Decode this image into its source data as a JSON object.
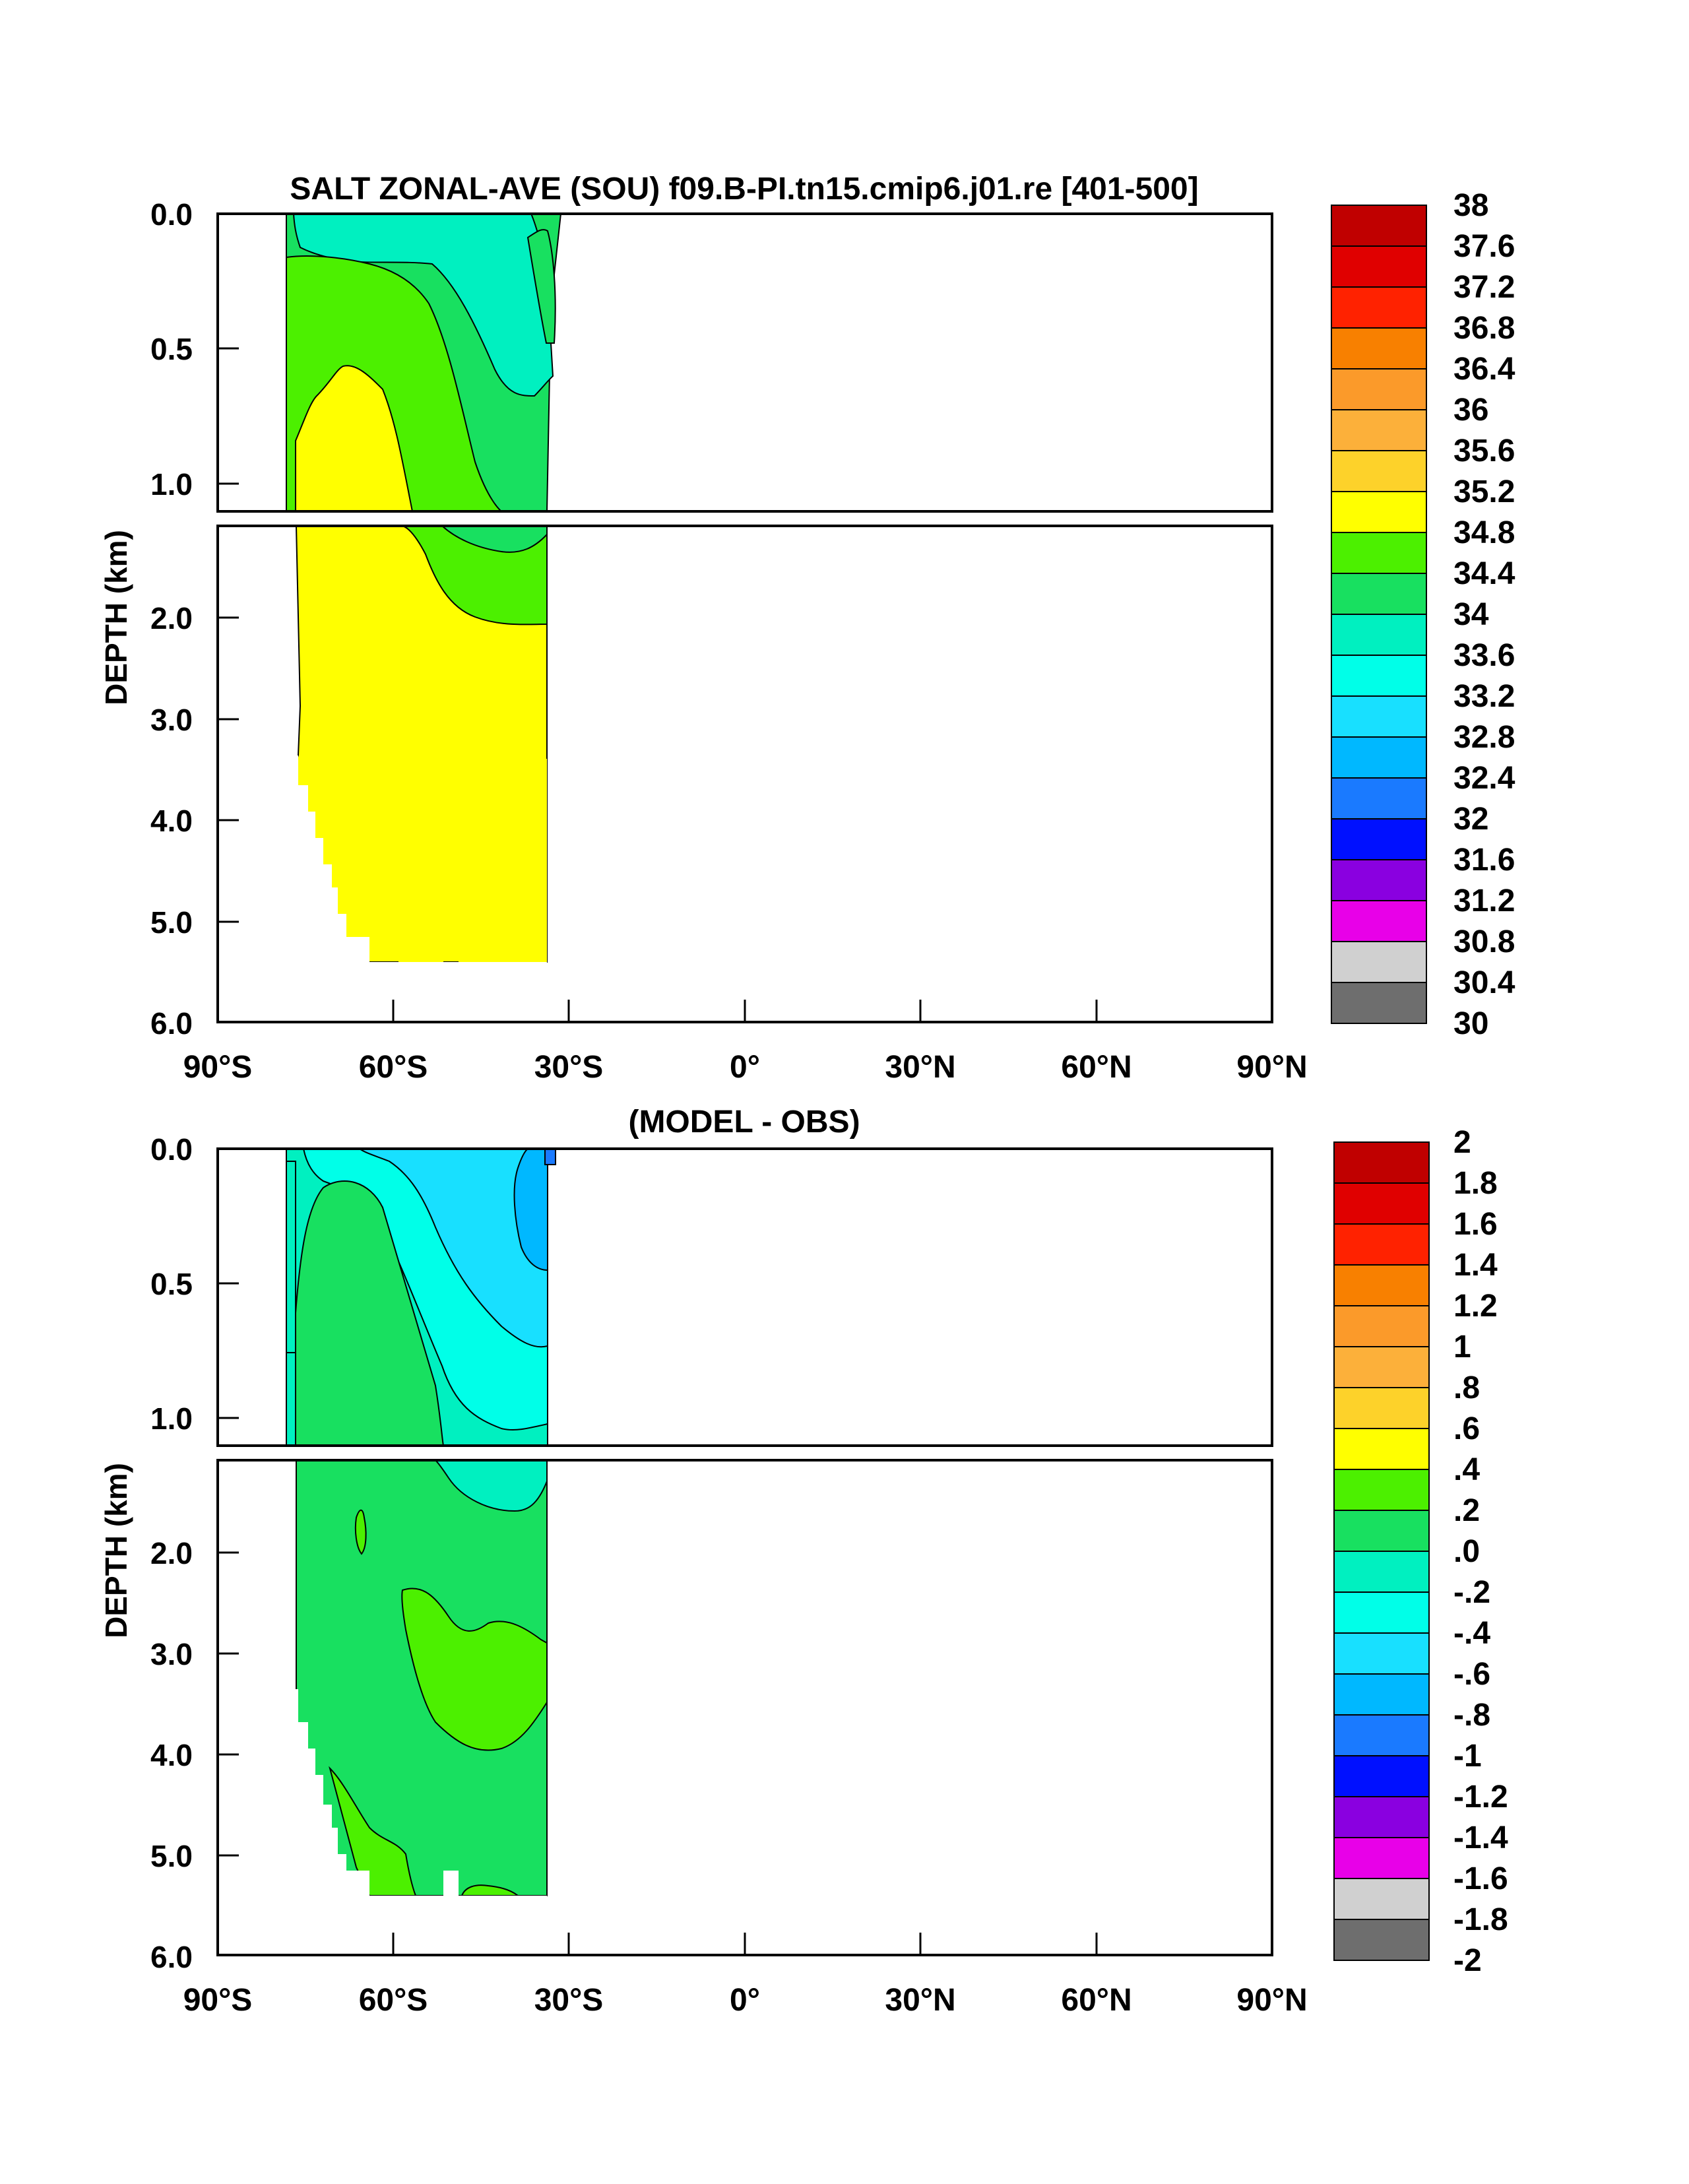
{
  "panels": [
    {
      "title": "SALT ZONAL-AVE (SOU) f09.B-PI.tn15.cmip6.j01.re [401-500]",
      "ylabel": "DEPTH (km)",
      "x_ticks": [
        "90°S",
        "60°S",
        "30°S",
        "0°",
        "30°N",
        "60°N",
        "90°N"
      ],
      "y_ticks_upper": [
        "0.0",
        "0.5",
        "1.0"
      ],
      "y_ticks_lower": [
        "2.0",
        "3.0",
        "4.0",
        "5.0",
        "6.0"
      ],
      "colorbar": {
        "labels": [
          "38",
          "37.6",
          "37.2",
          "36.8",
          "36.4",
          "36",
          "35.6",
          "35.2",
          "34.8",
          "34.4",
          "34",
          "33.6",
          "33.2",
          "32.8",
          "32.4",
          "32",
          "31.6",
          "31.2",
          "30.8",
          "30.4",
          "30"
        ],
        "colors_top_to_bottom": [
          "#c00000",
          "#e00000",
          "#ff2200",
          "#f88000",
          "#fb9a2a",
          "#fcb03a",
          "#fdd22a",
          "#ffff00",
          "#4cf000",
          "#18e060",
          "#00f0c0",
          "#00ffe8",
          "#18e0ff",
          "#00b8ff",
          "#1a7aff",
          "#0010ff",
          "#8a00e0",
          "#e800e8",
          "#d0d0d0",
          "#6e6e6e"
        ]
      }
    },
    {
      "title": "(MODEL - OBS)",
      "ylabel": "DEPTH (km)",
      "x_ticks": [
        "90°S",
        "60°S",
        "30°S",
        "0°",
        "30°N",
        "60°N",
        "90°N"
      ],
      "y_ticks_upper": [
        "0.0",
        "0.5",
        "1.0"
      ],
      "y_ticks_lower": [
        "2.0",
        "3.0",
        "4.0",
        "5.0",
        "6.0"
      ],
      "colorbar": {
        "labels": [
          "2",
          "1.8",
          "1.6",
          "1.4",
          "1.2",
          "1",
          ".8",
          ".6",
          ".4",
          ".2",
          ".0",
          "-.2",
          "-.4",
          "-.6",
          "-.8",
          "-1",
          "-1.2",
          "-1.4",
          "-1.6",
          "-1.8",
          "-2"
        ],
        "colors_top_to_bottom": [
          "#c00000",
          "#e00000",
          "#ff2200",
          "#f88000",
          "#fb9a2a",
          "#fcb03a",
          "#fdd22a",
          "#ffff00",
          "#4cf000",
          "#18e060",
          "#00f0c0",
          "#00ffe8",
          "#18e0ff",
          "#00b8ff",
          "#1a7aff",
          "#0010ff",
          "#8a00e0",
          "#e800e8",
          "#d0d0d0",
          "#6e6e6e"
        ]
      }
    }
  ],
  "chart_data": [
    {
      "type": "heatmap",
      "title": "SALT ZONAL-AVE (SOU) f09.B-PI.tn15.cmip6.j01.re [401-500]",
      "ylabel": "DEPTH (km)",
      "xlim": [
        -90,
        90
      ],
      "ylim": [
        6.0,
        0.0
      ],
      "depth_axis_break_km": 1.2,
      "data_latitude_range": [
        -78,
        -33
      ],
      "max_depth_km": 5.4,
      "levels": [
        30,
        30.4,
        30.8,
        31.2,
        31.6,
        32,
        32.4,
        32.8,
        33.2,
        33.6,
        34,
        34.4,
        34.8,
        35.2,
        35.6,
        36,
        36.4,
        36.8,
        37.2,
        37.6,
        38
      ],
      "regions": [
        {
          "salinity_range": [
            33.6,
            34.0
          ],
          "latitude_range": [
            -72,
            -35
          ],
          "depth_range_km": [
            0.0,
            0.6
          ]
        },
        {
          "salinity_range": [
            34.0,
            34.4
          ],
          "latitude_range": [
            -78,
            -34
          ],
          "depth_range_km": [
            0.0,
            1.1
          ]
        },
        {
          "salinity_range": [
            34.4,
            34.8
          ],
          "latitude_range": [
            -78,
            -34
          ],
          "depth_range_km": [
            0.2,
            2.1
          ]
        },
        {
          "salinity_range": [
            34.8,
            35.2
          ],
          "latitude_range": [
            -77,
            -34
          ],
          "depth_range_km": [
            0.6,
            5.4
          ]
        }
      ]
    },
    {
      "type": "heatmap",
      "title": "(MODEL - OBS)",
      "ylabel": "DEPTH (km)",
      "xlim": [
        -90,
        90
      ],
      "ylim": [
        6.0,
        0.0
      ],
      "depth_axis_break_km": 1.2,
      "data_latitude_range": [
        -78,
        -33
      ],
      "max_depth_km": 5.4,
      "levels": [
        -2,
        -1.8,
        -1.6,
        -1.4,
        -1.2,
        -1,
        -0.8,
        -0.6,
        -0.4,
        -0.2,
        0,
        0.2,
        0.4,
        0.6,
        0.8,
        1,
        1.2,
        1.4,
        1.6,
        1.8,
        2
      ],
      "regions": [
        {
          "difference_range": [
            -1.0,
            -0.8
          ],
          "latitude_range": [
            -34,
            -33
          ],
          "depth_range_km": [
            0.0,
            0.1
          ]
        },
        {
          "difference_range": [
            -0.8,
            -0.6
          ],
          "latitude_range": [
            -43,
            -34
          ],
          "depth_range_km": [
            0.0,
            0.5
          ]
        },
        {
          "difference_range": [
            -0.6,
            -0.4
          ],
          "latitude_range": [
            -62,
            -34
          ],
          "depth_range_km": [
            0.0,
            0.8
          ]
        },
        {
          "difference_range": [
            -0.4,
            -0.2
          ],
          "latitude_range": [
            -74,
            -34
          ],
          "depth_range_km": [
            0.0,
            1.1
          ]
        },
        {
          "difference_range": [
            -0.2,
            0.0
          ],
          "latitude_range": [
            -78,
            -34
          ],
          "depth_range_km": [
            0.0,
            1.6
          ]
        },
        {
          "difference_range": [
            0.0,
            0.2
          ],
          "latitude_range": [
            -77,
            -34
          ],
          "depth_range_km": [
            0.1,
            5.4
          ]
        },
        {
          "difference_range": [
            0.2,
            0.4
          ],
          "latitude_range": [
            -58,
            -34
          ],
          "depth_range_km": [
            2.7,
            3.9
          ]
        },
        {
          "difference_range": [
            0.2,
            0.4
          ],
          "latitude_range": [
            -66,
            -65
          ],
          "depth_range_km": [
            1.7,
            1.9
          ]
        },
        {
          "difference_range": [
            0.2,
            0.4
          ],
          "latitude_range": [
            -72,
            -60
          ],
          "depth_range_km": [
            4.6,
            5.4
          ]
        }
      ]
    }
  ]
}
